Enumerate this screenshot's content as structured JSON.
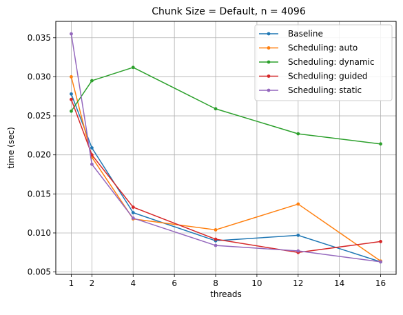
{
  "chart_data": {
    "type": "line",
    "title": "Chunk Size = Default, n = 4096",
    "xlabel": "threads",
    "ylabel": "time (sec)",
    "x": [
      1,
      2,
      4,
      8,
      12,
      16
    ],
    "xticks": [
      1,
      2,
      4,
      6,
      8,
      10,
      12,
      14,
      16
    ],
    "yticks": [
      0.005,
      0.01,
      0.015,
      0.02,
      0.025,
      0.03,
      0.035
    ],
    "ytick_labels": [
      "0.005",
      "0.010",
      "0.015",
      "0.020",
      "0.025",
      "0.030",
      "0.035"
    ],
    "xlim": [
      0.25,
      16.75
    ],
    "ylim": [
      0.0047,
      0.0371
    ],
    "grid": true,
    "legend_position": "top-right",
    "series": [
      {
        "name": "Baseline",
        "color": "#1f77b4",
        "values": [
          0.0278,
          0.0209,
          0.0126,
          0.009,
          0.0097,
          0.0063
        ]
      },
      {
        "name": "Scheduling: auto",
        "color": "#ff7f0e",
        "values": [
          0.03,
          0.0197,
          0.0118,
          0.0104,
          0.0137,
          0.0064
        ]
      },
      {
        "name": "Scheduling: dynamic",
        "color": "#2ca02c",
        "values": [
          0.0256,
          0.0295,
          0.0312,
          0.0259,
          0.0227,
          0.0214
        ]
      },
      {
        "name": "Scheduling: guided",
        "color": "#d62728",
        "values": [
          0.0271,
          0.02,
          0.0133,
          0.0092,
          0.0075,
          0.0089
        ]
      },
      {
        "name": "Scheduling: static",
        "color": "#9467bd",
        "values": [
          0.0355,
          0.0188,
          0.0119,
          0.0084,
          0.0077,
          0.0063
        ]
      }
    ]
  }
}
